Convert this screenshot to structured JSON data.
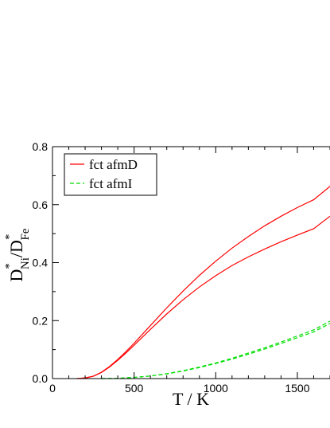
{
  "chart_data": {
    "type": "line",
    "title": "",
    "xlabel": "T / K",
    "ylabel": {
      "main": "D",
      "sup1": "*",
      "sub1": "Ni",
      "slash": "/",
      "main2": "D",
      "sup2": "*",
      "sub2": "Fe"
    },
    "xlim": [
      0,
      1700
    ],
    "ylim": [
      0,
      0.8
    ],
    "x_ticks": [
      {
        "value": 0,
        "label": "0"
      },
      {
        "value": 500,
        "label": "500"
      },
      {
        "value": 1000,
        "label": "1000"
      },
      {
        "value": 1500,
        "label": "1500"
      }
    ],
    "y_ticks": [
      {
        "value": 0,
        "label": "0.0"
      },
      {
        "value": 0.2,
        "label": "0.2"
      },
      {
        "value": 0.4,
        "label": "0.4"
      },
      {
        "value": 0.6,
        "label": "0.6"
      },
      {
        "value": 0.8,
        "label": "0.8"
      }
    ],
    "grid": false,
    "legend": {
      "placement": "top-left",
      "entries": [
        {
          "label": "fct afmD",
          "color": "#ff0000",
          "dash": "solid"
        },
        {
          "label": "fct afmI",
          "color": "#00dd00",
          "dash": "dashed"
        }
      ]
    },
    "series": [
      {
        "legend_index": 0,
        "color": "#ff0000",
        "dash": "solid",
        "x": [
          150,
          200,
          250,
          300,
          350,
          400,
          450,
          500,
          600,
          700,
          800,
          900,
          1000,
          1100,
          1200,
          1300,
          1400,
          1500,
          1600,
          1700
        ],
        "y": [
          0.0,
          0.002,
          0.008,
          0.022,
          0.042,
          0.066,
          0.093,
          0.122,
          0.183,
          0.244,
          0.302,
          0.356,
          0.405,
          0.45,
          0.49,
          0.527,
          0.56,
          0.59,
          0.617,
          0.663
        ]
      },
      {
        "legend_index": 0,
        "color": "#ff0000",
        "dash": "solid",
        "x": [
          150,
          200,
          250,
          300,
          350,
          400,
          450,
          500,
          600,
          700,
          800,
          900,
          1000,
          1100,
          1200,
          1300,
          1400,
          1500,
          1600,
          1700
        ],
        "y": [
          0.0,
          0.002,
          0.008,
          0.021,
          0.04,
          0.063,
          0.088,
          0.115,
          0.17,
          0.223,
          0.272,
          0.316,
          0.355,
          0.39,
          0.42,
          0.447,
          0.472,
          0.495,
          0.517,
          0.56
        ]
      },
      {
        "legend_index": 1,
        "color": "#00dd00",
        "dash": "dashed",
        "x": [
          300,
          400,
          500,
          600,
          700,
          800,
          900,
          1000,
          1100,
          1200,
          1300,
          1400,
          1500,
          1600,
          1700
        ],
        "y": [
          0.0,
          0.001,
          0.004,
          0.009,
          0.017,
          0.027,
          0.04,
          0.054,
          0.07,
          0.088,
          0.106,
          0.126,
          0.147,
          0.168,
          0.198
        ]
      },
      {
        "legend_index": 1,
        "color": "#00dd00",
        "dash": "dashed",
        "x": [
          300,
          400,
          500,
          600,
          700,
          800,
          900,
          1000,
          1100,
          1200,
          1300,
          1400,
          1500,
          1600,
          1700
        ],
        "y": [
          0.0,
          0.001,
          0.004,
          0.009,
          0.016,
          0.026,
          0.038,
          0.052,
          0.067,
          0.084,
          0.102,
          0.121,
          0.141,
          0.161,
          0.19
        ]
      }
    ]
  }
}
